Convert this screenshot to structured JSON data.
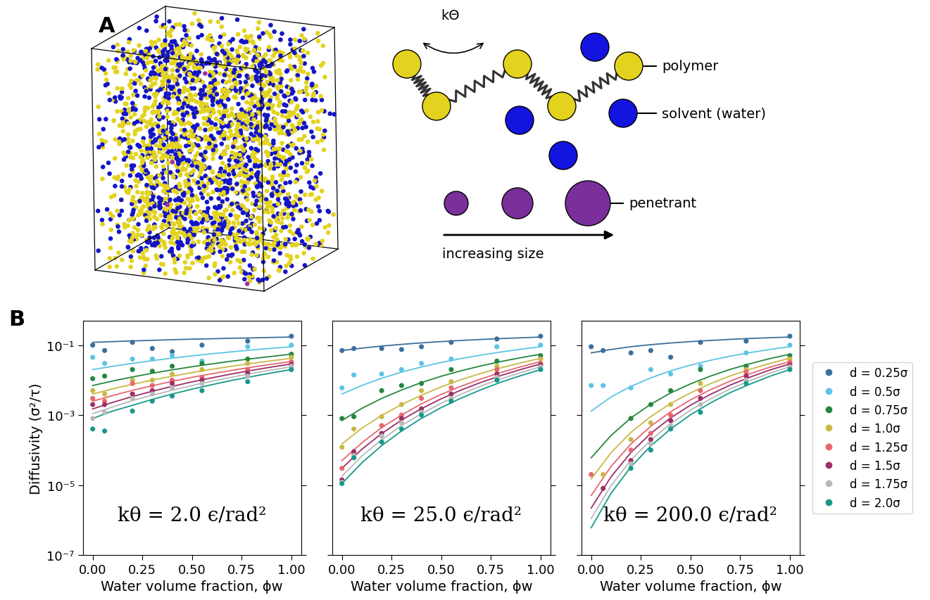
{
  "panels": [
    "A",
    "B"
  ],
  "diagram": {
    "angle_label": "kΘ",
    "polymer": "polymer",
    "solvent": "solvent (water)",
    "penetrant": "penetrant",
    "arrow_label": "increasing size"
  },
  "chart_data": [
    {
      "type": "scatter",
      "title": "kθ = 2.0 ϵ/rad²",
      "x_label": "Water volume fraction, ϕw",
      "y_label": "Diffusivity (σ²/τ)",
      "log": "y",
      "xlim": [
        -0.05,
        1.05
      ],
      "xticks": [
        {
          "value": 0.0,
          "label": "0.00"
        },
        {
          "value": 0.25,
          "label": "0.25"
        },
        {
          "value": 0.5,
          "label": "0.50"
        },
        {
          "value": 0.75,
          "label": "0.75"
        },
        {
          "value": 1.0,
          "label": "1.00"
        }
      ],
      "ylim": [
        1e-07,
        0.5
      ],
      "yticks": [
        {
          "value": 1e-07,
          "label": "10⁻⁷"
        },
        {
          "value": 1e-05,
          "label": "10⁻⁵"
        },
        {
          "value": 0.001,
          "label": "10⁻³"
        },
        {
          "value": 0.1,
          "label": "10⁻¹"
        }
      ],
      "x": [
        0.0,
        0.06,
        0.2,
        0.3,
        0.4,
        0.55,
        0.78,
        1.0
      ],
      "fit_x": [
        0.0,
        0.1,
        0.2,
        0.3,
        0.4,
        0.5,
        0.6,
        0.7,
        0.8,
        0.9,
        1.0
      ],
      "series": [
        {
          "name": "d = 0.25σ",
          "color": "#3b6f9c",
          "values": [
            0.1,
            0.07,
            0.12,
            0.08,
            0.065,
            0.1,
            0.13,
            0.18
          ],
          "fit": [
            0.12,
            0.126,
            0.132,
            0.137,
            0.143,
            0.148,
            0.152,
            0.157,
            0.161,
            0.166,
            0.17
          ]
        },
        {
          "name": "d = 0.5σ",
          "color": "#5cc4e4",
          "values": [
            0.045,
            0.03,
            0.04,
            0.04,
            0.05,
            0.035,
            0.09,
            0.1
          ],
          "fit": [
            0.02,
            0.0248,
            0.0301,
            0.036,
            0.0425,
            0.0493,
            0.0566,
            0.0644,
            0.0726,
            0.0811,
            0.09
          ]
        },
        {
          "name": "d = 0.75σ",
          "color": "#23873f",
          "values": [
            0.011,
            0.013,
            0.02,
            0.018,
            0.025,
            0.03,
            0.04,
            0.055
          ],
          "fit": [
            0.007,
            0.0094,
            0.0123,
            0.0157,
            0.0196,
            0.0241,
            0.0291,
            0.0348,
            0.0409,
            0.0476,
            0.055
          ]
        },
        {
          "name": "d = 1.0σ",
          "color": "#c9b845",
          "values": [
            0.005,
            0.004,
            0.01,
            0.01,
            0.015,
            0.02,
            0.03,
            0.045
          ],
          "fit": [
            0.004,
            0.0056,
            0.0076,
            0.01,
            0.0129,
            0.0164,
            0.0204,
            0.0249,
            0.03,
            0.0357,
            0.042
          ]
        },
        {
          "name": "d = 1.25σ",
          "color": "#e8666e",
          "values": [
            0.003,
            0.0025,
            0.008,
            0.007,
            0.01,
            0.012,
            0.02,
            0.033
          ],
          "fit": [
            0.0025,
            0.0036,
            0.0051,
            0.0069,
            0.0092,
            0.012,
            0.0152,
            0.019,
            0.0234,
            0.0284,
            0.034
          ]
        },
        {
          "name": "d = 1.5σ",
          "color": "#9c2e66",
          "values": [
            0.002,
            0.002,
            0.004,
            0.005,
            0.008,
            0.01,
            0.016,
            0.028
          ],
          "fit": [
            0.0015,
            0.0023,
            0.0034,
            0.0048,
            0.0066,
            0.0089,
            0.0116,
            0.015,
            0.019,
            0.0236,
            0.029
          ]
        },
        {
          "name": "d = 1.75σ",
          "color": "#b9b9b9",
          "values": [
            0.0008,
            0.0012,
            0.003,
            0.004,
            0.006,
            0.008,
            0.013,
            0.025
          ],
          "fit": [
            0.0011,
            0.0017,
            0.0026,
            0.0037,
            0.0051,
            0.007,
            0.0093,
            0.0121,
            0.0155,
            0.0194,
            0.024
          ]
        },
        {
          "name": "d = 2.0σ",
          "color": "#16998a",
          "values": [
            0.0004,
            0.00035,
            0.0013,
            0.0025,
            0.0035,
            0.005,
            0.009,
            0.02
          ],
          "fit": [
            0.0008,
            0.0013,
            0.0019,
            0.0028,
            0.004,
            0.0055,
            0.0074,
            0.0098,
            0.0126,
            0.016,
            0.02
          ]
        }
      ]
    },
    {
      "type": "scatter",
      "title": "kθ = 25.0 ϵ/rad²",
      "x_label": "Water volume fraction, ϕw",
      "log": "y",
      "tick_labels": "x",
      "xlim": [
        -0.05,
        1.05
      ],
      "xticks": [
        {
          "value": 0.0,
          "label": "0.00"
        },
        {
          "value": 0.25,
          "label": "0.25"
        },
        {
          "value": 0.5,
          "label": "0.50"
        },
        {
          "value": 0.75,
          "label": "0.75"
        },
        {
          "value": 1.0,
          "label": "1.00"
        }
      ],
      "ylim": [
        1e-07,
        0.5
      ],
      "yticks": [
        {
          "value": 1e-07,
          "label": "10⁻⁷"
        },
        {
          "value": 1e-05,
          "label": "10⁻⁵"
        },
        {
          "value": 0.001,
          "label": "10⁻³"
        },
        {
          "value": 0.1,
          "label": "10⁻¹"
        }
      ],
      "x": [
        0.0,
        0.06,
        0.2,
        0.3,
        0.4,
        0.55,
        0.78,
        1.0
      ],
      "fit_x": [
        0.0,
        0.1,
        0.2,
        0.3,
        0.4,
        0.5,
        0.6,
        0.7,
        0.8,
        0.9,
        1.0
      ],
      "series": [
        {
          "name": "d = 0.25σ",
          "color": "#3b6f9c",
          "values": [
            0.07,
            0.08,
            0.08,
            0.075,
            0.09,
            0.12,
            0.15,
            0.18
          ],
          "fit": [
            0.07,
            0.082,
            0.094,
            0.105,
            0.116,
            0.126,
            0.136,
            0.145,
            0.154,
            0.162,
            0.17
          ]
        },
        {
          "name": "d = 0.5σ",
          "color": "#5cc4e4",
          "values": [
            0.006,
            0.014,
            0.015,
            0.02,
            0.03,
            0.04,
            0.09,
            0.1
          ],
          "fit": [
            0.004,
            0.007,
            0.0113,
            0.0169,
            0.0237,
            0.0319,
            0.0413,
            0.052,
            0.0637,
            0.0762,
            0.09
          ]
        },
        {
          "name": "d = 0.75σ",
          "color": "#23873f",
          "values": [
            0.0008,
            0.0009,
            0.005,
            0.007,
            0.008,
            0.02,
            0.035,
            0.05
          ],
          "fit": [
            0.0007,
            0.00155,
            0.003,
            0.0052,
            0.0085,
            0.0129,
            0.0185,
            0.0255,
            0.0339,
            0.0437,
            0.055
          ]
        },
        {
          "name": "d = 1.0σ",
          "color": "#c9b845",
          "values": [
            0.00012,
            0.0004,
            0.0009,
            0.002,
            0.005,
            0.009,
            0.025,
            0.04
          ],
          "fit": [
            0.00015,
            0.00042,
            0.00098,
            0.002,
            0.0037,
            0.0064,
            0.0103,
            0.0156,
            0.0224,
            0.0311,
            0.042
          ]
        },
        {
          "name": "d = 1.25σ",
          "color": "#e8666e",
          "values": [
            3e-05,
            8e-05,
            0.0005,
            0.001,
            0.003,
            0.006,
            0.02,
            0.03
          ],
          "fit": [
            5e-05,
            0.00016,
            0.00044,
            0.001,
            0.0021,
            0.0039,
            0.0067,
            0.0108,
            0.0165,
            0.024,
            0.034
          ]
        },
        {
          "name": "d = 1.5σ",
          "color": "#9c2e66",
          "values": [
            1.4e-05,
            9e-05,
            0.0003,
            0.0008,
            0.0015,
            0.004,
            0.015,
            0.027
          ],
          "fit": [
            3e-05,
            0.000105,
            0.000296,
            0.00072,
            0.00152,
            0.00293,
            0.0052,
            0.0086,
            0.0135,
            0.0201,
            0.029
          ]
        },
        {
          "name": "d = 1.75σ",
          "color": "#b9b9b9",
          "values": [
            1.2e-05,
            7e-05,
            0.00025,
            0.0006,
            0.0012,
            0.003,
            0.012,
            0.024
          ],
          "fit": [
            1.8e-05,
            6.7e-05,
            0.000198,
            0.0005,
            0.00109,
            0.00218,
            0.00397,
            0.0068,
            0.0108,
            0.0164,
            0.024
          ]
        },
        {
          "name": "d = 2.0σ",
          "color": "#16998a",
          "values": [
            1.1e-05,
            6e-05,
            0.00017,
            0.0004,
            0.001,
            0.0025,
            0.01,
            0.02
          ],
          "fit": [
            1.1e-05,
            4.3e-05,
            0.000134,
            0.00035,
            0.0008,
            0.00164,
            0.00306,
            0.0053,
            0.0087,
            0.0134,
            0.02
          ]
        }
      ]
    },
    {
      "type": "scatter",
      "title": "kθ = 200.0 ϵ/rad²",
      "x_label": "Water volume fraction, ϕw",
      "log": "y",
      "tick_labels": "x",
      "legend": "center left",
      "xlim": [
        -0.05,
        1.05
      ],
      "xticks": [
        {
          "value": 0.0,
          "label": "0.00"
        },
        {
          "value": 0.25,
          "label": "0.25"
        },
        {
          "value": 0.5,
          "label": "0.50"
        },
        {
          "value": 0.75,
          "label": "0.75"
        },
        {
          "value": 1.0,
          "label": "1.00"
        }
      ],
      "ylim": [
        1e-07,
        0.5
      ],
      "yticks": [
        {
          "value": 1e-07,
          "label": "10⁻⁷"
        },
        {
          "value": 1e-05,
          "label": "10⁻⁵"
        },
        {
          "value": 0.001,
          "label": "10⁻³"
        },
        {
          "value": 0.1,
          "label": "10⁻¹"
        }
      ],
      "x": [
        0.0,
        0.06,
        0.2,
        0.3,
        0.4,
        0.55,
        0.78,
        1.0
      ],
      "fit_x": [
        0.0,
        0.1,
        0.2,
        0.3,
        0.4,
        0.5,
        0.6,
        0.7,
        0.8,
        0.9,
        1.0
      ],
      "series": [
        {
          "name": "d = 0.25σ",
          "color": "#3b6f9c",
          "values": [
            0.09,
            0.07,
            0.06,
            0.07,
            0.045,
            0.12,
            0.13,
            0.18
          ],
          "fit": [
            0.06,
            0.075,
            0.09,
            0.103,
            0.115,
            0.126,
            0.136,
            0.146,
            0.155,
            0.163,
            0.17
          ]
        },
        {
          "name": "d = 0.5σ",
          "color": "#5cc4e4",
          "values": [
            0.007,
            0.007,
            0.006,
            0.02,
            0.015,
            0.025,
            0.06,
            0.1
          ],
          "fit": [
            0.0013,
            0.0033,
            0.0066,
            0.0116,
            0.0184,
            0.0268,
            0.0368,
            0.0484,
            0.0612,
            0.0753,
            0.09
          ]
        },
        {
          "name": "d = 0.75σ",
          "color": "#23873f",
          "values": [
            null,
            null,
            0.0008,
            0.002,
            0.005,
            0.02,
            0.025,
            0.05
          ],
          "fit": [
            6e-05,
            0.00026,
            0.00083,
            0.00204,
            0.0043,
            0.0078,
            0.013,
            0.0203,
            0.0295,
            0.0413,
            0.055
          ]
        },
        {
          "name": "d = 1.0σ",
          "color": "#c9b845",
          "values": [
            null,
            2e-05,
            0.0002,
            0.0006,
            0.002,
            0.008,
            0.02,
            0.04
          ],
          "fit": [
            1.5e-05,
            8.4e-05,
            0.00032,
            0.00091,
            0.00214,
            0.0043,
            0.0079,
            0.0132,
            0.0204,
            0.0301,
            0.042
          ]
        },
        {
          "name": "d = 1.25σ",
          "color": "#e8666e",
          "values": [
            2e-05,
            null,
            0.0001,
            0.0003,
            0.001,
            0.005,
            0.017,
            0.032
          ],
          "fit": [
            5e-06,
            3.4e-05,
            0.000149,
            0.00048,
            0.00124,
            0.00272,
            0.0053,
            0.0094,
            0.0152,
            0.0234,
            0.034
          ]
        },
        {
          "name": "d = 1.5σ",
          "color": "#9c2e66",
          "values": [
            null,
            8e-06,
            5e-05,
            0.0002,
            0.0007,
            0.003,
            0.013,
            0.027
          ],
          "fit": [
            2.2e-06,
            1.72e-05,
            8.5e-05,
            0.0003,
            0.00083,
            0.00192,
            0.0039,
            0.0072,
            0.0122,
            0.0195,
            0.029
          ]
        },
        {
          "name": "d = 1.75σ",
          "color": "#b9b9b9",
          "values": [
            null,
            null,
            4e-05,
            0.00015,
            0.0005,
            0.002,
            0.01,
            0.024
          ],
          "fit": [
            1.1e-06,
            9.6e-06,
            5.2e-05,
            0.000192,
            0.00057,
            0.00138,
            0.00291,
            0.0056,
            0.0097,
            0.0158,
            0.024
          ]
        },
        {
          "name": "d = 2.0σ",
          "color": "#16998a",
          "values": [
            null,
            null,
            3e-05,
            0.0001,
            0.0004,
            0.0012,
            0.008,
            0.02
          ],
          "fit": [
            6e-07,
            5.8e-06,
            3.3e-05,
            0.000131,
            0.0004,
            0.00102,
            0.00222,
            0.0044,
            0.0077,
            0.0129,
            0.02
          ]
        }
      ]
    }
  ]
}
